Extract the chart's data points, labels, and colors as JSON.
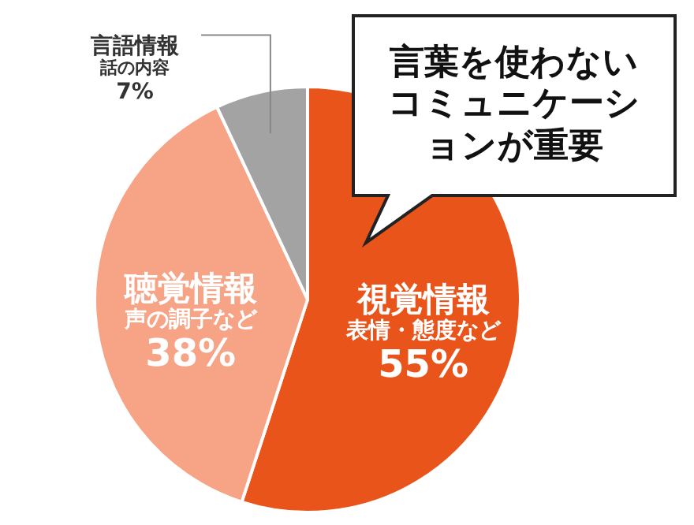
{
  "chart_data": {
    "type": "pie",
    "categories": [
      "視覚情報",
      "聴覚情報",
      "言語情報"
    ],
    "values": [
      55,
      38,
      7
    ],
    "value_labels": [
      "55%",
      "38%",
      "7%"
    ],
    "colors": [
      "#e9541b",
      "#f7a386",
      "#a3a3a3"
    ],
    "annotations": [
      "表情・態度など",
      "声の調子など",
      "話の内容",
      "言葉を使わないコミュニケーションが重要"
    ]
  }
}
